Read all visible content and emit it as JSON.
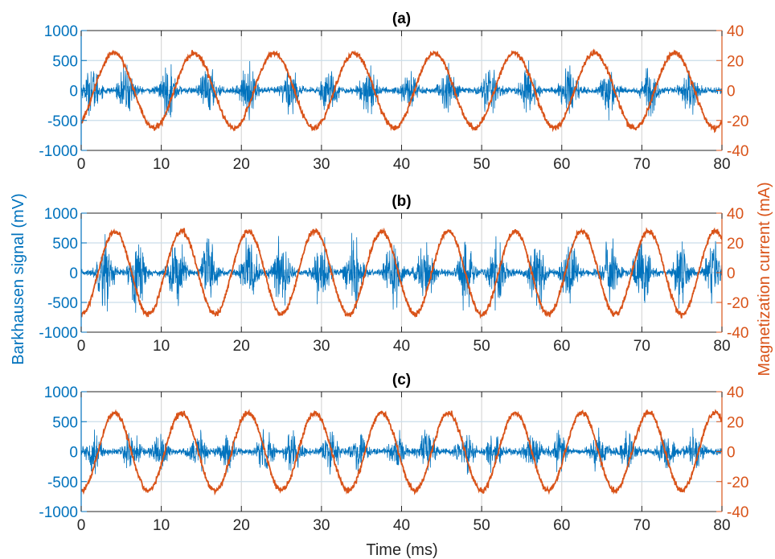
{
  "figure": {
    "left_ylabel": "Barkhausen signal (mV)",
    "right_ylabel": "Magnetization current (mA)",
    "xlabel": "Time (ms)",
    "colors": {
      "left": "#0072BD",
      "right": "#D95319",
      "grid": "#c9ddea",
      "axis": "#262626"
    }
  },
  "chart_data": [
    {
      "type": "line",
      "title": "(a)",
      "xlim": [
        0,
        80
      ],
      "xticks": [
        0,
        10,
        20,
        30,
        40,
        50,
        60,
        70,
        80
      ],
      "y_left": {
        "lim": [
          -1000,
          1000
        ],
        "ticks": [
          -1000,
          -500,
          0,
          500,
          1000
        ]
      },
      "y_right": {
        "lim": [
          -40,
          40
        ],
        "ticks": [
          -40,
          -20,
          0,
          20,
          40
        ]
      },
      "grid": true,
      "series": [
        {
          "axis": "left",
          "kind": "barkhausen-noise-bursts",
          "baseline_amplitude_mV": 60,
          "burst_peak_amplitude_mV": 500,
          "burst_centers_ms": [
            1.4,
            5.7,
            10.9,
            15.9,
            20.9,
            26.0,
            30.9,
            35.9,
            41.0,
            45.9,
            51.0,
            55.9,
            60.9,
            65.8,
            70.9,
            75.9
          ],
          "x": [
            0,
            80
          ]
        },
        {
          "axis": "right",
          "kind": "sine",
          "amplitude_mA": 25,
          "period_ms": 10.0,
          "peak_times_ms": [
            4.1,
            14.1,
            24.1,
            34.1,
            44.1,
            54.1,
            64.1,
            74.1
          ],
          "x": [
            0,
            80
          ]
        }
      ]
    },
    {
      "type": "line",
      "title": "(b)",
      "xlim": [
        0,
        80
      ],
      "xticks": [
        0,
        10,
        20,
        30,
        40,
        50,
        60,
        70,
        80
      ],
      "y_left": {
        "lim": [
          -1000,
          1000
        ],
        "ticks": [
          -1000,
          -500,
          0,
          500,
          1000
        ]
      },
      "y_right": {
        "lim": [
          -40,
          40
        ],
        "ticks": [
          -40,
          -20,
          0,
          20,
          40
        ]
      },
      "grid": true,
      "series": [
        {
          "axis": "left",
          "kind": "barkhausen-noise-bursts",
          "baseline_amplitude_mV": 60,
          "burst_peak_amplitude_mV": 700,
          "burst_centers_ms": [
            3.0,
            7.0,
            12.0,
            16.0,
            21.0,
            25.0,
            30.0,
            34.0,
            39.0,
            43.0,
            48.0,
            52.0,
            57.0,
            61.0,
            66.0,
            70.0,
            75.0,
            79.0
          ],
          "x": [
            0,
            80
          ]
        },
        {
          "axis": "right",
          "kind": "sine",
          "amplitude_mA": 28,
          "period_ms": 8.33,
          "peak_times_ms": [
            4.2,
            12.5,
            20.8,
            29.2,
            37.5,
            45.8,
            54.2,
            62.5,
            70.8,
            79.2
          ],
          "x": [
            0,
            80
          ]
        }
      ]
    },
    {
      "type": "line",
      "title": "(c)",
      "xlim": [
        0,
        80
      ],
      "xticks": [
        0,
        10,
        20,
        30,
        40,
        50,
        60,
        70,
        80
      ],
      "y_left": {
        "lim": [
          -1000,
          1000
        ],
        "ticks": [
          -1000,
          -500,
          0,
          500,
          1000
        ]
      },
      "y_right": {
        "lim": [
          -40,
          40
        ],
        "ticks": [
          -40,
          -20,
          0,
          20,
          40
        ]
      },
      "grid": true,
      "series": [
        {
          "axis": "left",
          "kind": "barkhausen-noise-bursts",
          "baseline_amplitude_mV": 60,
          "burst_peak_amplitude_mV": 400,
          "burst_centers_ms": [
            1.5,
            6.3,
            9.8,
            14.6,
            18.2,
            23.0,
            26.5,
            31.3,
            34.8,
            39.6,
            43.2,
            48.0,
            51.5,
            56.3,
            59.8,
            64.6,
            68.2,
            73.0,
            76.5
          ],
          "x": [
            0,
            80
          ]
        },
        {
          "axis": "right",
          "kind": "sine",
          "amplitude_mA": 26,
          "period_ms": 8.33,
          "peak_times_ms": [
            4.2,
            12.5,
            20.8,
            29.2,
            37.5,
            45.8,
            54.2,
            62.5,
            70.8,
            79.2
          ],
          "x": [
            0,
            80
          ]
        }
      ]
    }
  ]
}
